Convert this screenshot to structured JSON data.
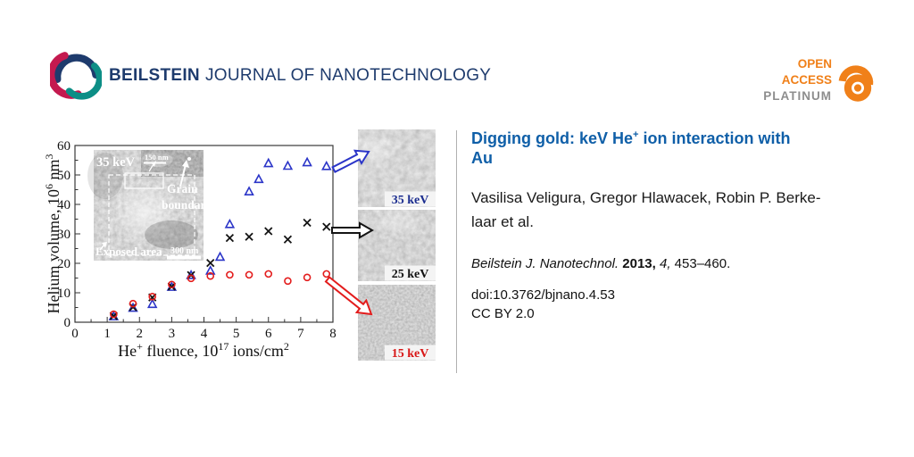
{
  "header": {
    "brand_bold": "BEILSTEIN",
    "brand_rest": "JOURNAL OF NANOTECHNOLOGY",
    "open_access": {
      "line1": "OPEN",
      "line2": "ACCESS",
      "line3": "PLATINUM"
    }
  },
  "article": {
    "title": {
      "line1_pre": "Digging gold: keV He",
      "line1_sup": "+",
      "line1_post": " ion interaction with",
      "line2": "Au"
    },
    "authors_line1": "Vasilisa Veligura, Gregor Hlawacek, Robin P. Berke-",
    "authors_line2": "laar et al.",
    "citation": {
      "journal": "Beilstein J. Nanotechnol. ",
      "year": "2013, ",
      "volume": "4, ",
      "pages": "453–460."
    },
    "doi": "doi:10.3762/bjnano.4.53",
    "license": "CC BY 2.0"
  },
  "figure": {
    "inset": {
      "energy": "35 keV",
      "scale_top": "150 nm",
      "grain_line1": "Grain",
      "grain_line2": "boundary",
      "exposed": "Exposed area",
      "scale_bottom": "300 nm"
    },
    "micrographs": [
      {
        "label": "35 keV",
        "color": "#1b2d8f"
      },
      {
        "label": "25 keV",
        "color": "#111111"
      },
      {
        "label": "15 keV",
        "color": "#d81616"
      }
    ]
  },
  "chart_data": {
    "type": "scatter",
    "title": "",
    "xlabel_parts": [
      "He",
      "+",
      " fluence, 10",
      "17",
      " ions/cm",
      "2"
    ],
    "ylabel_parts": [
      "Helium volume, 10",
      "6",
      " nm",
      "3"
    ],
    "xlim": [
      0,
      8
    ],
    "ylim": [
      0,
      60
    ],
    "xtick_labels": [
      0,
      1,
      2,
      3,
      4,
      5,
      6,
      7,
      8
    ],
    "ytick_labels": [
      0,
      10,
      20,
      30,
      40,
      50,
      60
    ],
    "minor_x": 0.5,
    "minor_y": 5,
    "grid": false,
    "legend": "none (series identified by colored arrows to micrographs)",
    "series": [
      {
        "name": "35 keV",
        "marker": "triangle",
        "color": "#2b35c8",
        "points": [
          [
            1.2,
            1.9
          ],
          [
            1.8,
            4.8
          ],
          [
            2.4,
            6.1
          ],
          [
            3.0,
            11.9
          ],
          [
            3.6,
            15.9
          ],
          [
            4.2,
            17.4
          ],
          [
            4.5,
            22.1
          ],
          [
            4.8,
            33.2
          ],
          [
            5.4,
            44.3
          ],
          [
            5.7,
            48.5
          ],
          [
            6.0,
            53.9
          ],
          [
            6.6,
            53.0
          ],
          [
            7.2,
            54.2
          ],
          [
            7.8,
            52.9
          ]
        ]
      },
      {
        "name": "25 keV",
        "marker": "x",
        "color": "#141414",
        "points": [
          [
            1.2,
            2.1
          ],
          [
            1.8,
            5.1
          ],
          [
            2.4,
            8.4
          ],
          [
            3.0,
            12.1
          ],
          [
            3.6,
            16.0
          ],
          [
            4.2,
            20.1
          ],
          [
            4.8,
            28.6
          ],
          [
            5.4,
            29.0
          ],
          [
            6.0,
            30.9
          ],
          [
            6.6,
            28.1
          ],
          [
            7.2,
            33.8
          ],
          [
            7.8,
            32.4
          ]
        ]
      },
      {
        "name": "15 keV",
        "marker": "circle",
        "color": "#e31c1c",
        "points": [
          [
            1.2,
            2.7
          ],
          [
            1.8,
            6.3
          ],
          [
            2.4,
            8.7
          ],
          [
            3.0,
            12.8
          ],
          [
            3.6,
            14.9
          ],
          [
            4.2,
            15.7
          ],
          [
            4.8,
            16.1
          ],
          [
            5.4,
            16.1
          ],
          [
            6.0,
            16.4
          ],
          [
            6.6,
            14.0
          ],
          [
            7.2,
            15.2
          ],
          [
            7.8,
            16.4
          ]
        ]
      }
    ]
  },
  "colors": {
    "brand_navy": "#1e3b6d",
    "logo_crimson": "#c4194f",
    "logo_teal": "#0d8e86",
    "oa_orange": "#f08019",
    "platinum_gray": "#8d8d8d",
    "title_blue": "#0f5fa8"
  }
}
